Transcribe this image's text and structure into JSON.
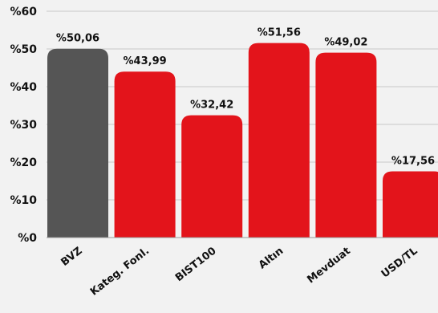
{
  "chart_data": {
    "type": "bar",
    "categories": [
      "BVZ",
      "Kateg. Fonl.",
      "BIST100",
      "Altın",
      "Mevduat",
      "USD/TL"
    ],
    "values": [
      50.06,
      43.99,
      32.42,
      51.56,
      49.02,
      17.56
    ],
    "value_labels": [
      "%50,06",
      "%43,99",
      "%32,42",
      "%51,56",
      "%49,02",
      "%17,56"
    ],
    "y_ticks": [
      0,
      10,
      20,
      30,
      40,
      50,
      60
    ],
    "y_tick_labels": [
      "%0",
      "%10",
      "%20",
      "%30",
      "%40",
      "%50",
      "%60"
    ],
    "ylim": [
      0,
      60
    ],
    "grid": true,
    "bar_colors": [
      "#555555",
      "#e3141b",
      "#e3141b",
      "#e3141b",
      "#e3141b",
      "#e3141b"
    ],
    "background": "#f2f2f2",
    "title": "",
    "xlabel": "",
    "ylabel": ""
  }
}
